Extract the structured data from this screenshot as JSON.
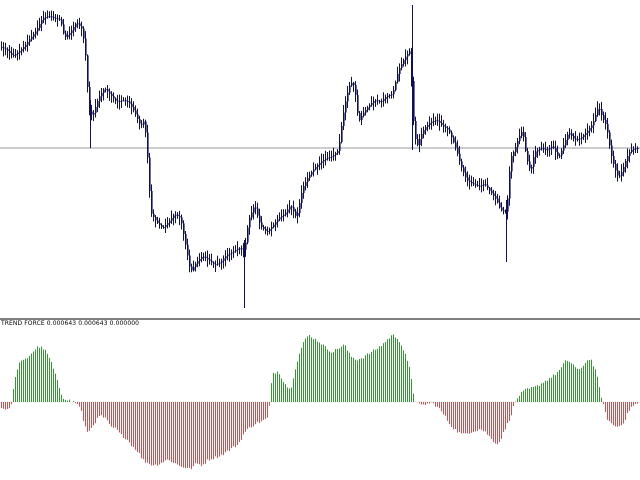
{
  "indicator": {
    "label": "TREND FORCE 0.000643 0.000643 0.000000",
    "positive_color": "#2e9a2e",
    "negative_color": "#e04848"
  },
  "price_chart": {
    "candle_color": "#101050",
    "level_line_color": "#9a9a9a"
  },
  "chart_data": [
    {
      "type": "candlestick",
      "title": "",
      "series": [
        {
          "name": "",
          "close_path": [
            [
              0,
              47
            ],
            [
              6,
              50
            ],
            [
              12,
              56
            ],
            [
              18,
              52
            ],
            [
              24,
              46
            ],
            [
              30,
              38
            ],
            [
              36,
              30
            ],
            [
              42,
              18
            ],
            [
              48,
              16
            ],
            [
              54,
              18
            ],
            [
              60,
              20
            ],
            [
              64,
              38
            ],
            [
              70,
              32
            ],
            [
              76,
              22
            ],
            [
              82,
              30
            ],
            [
              86,
              64
            ],
            [
              88,
              110
            ],
            [
              92,
              116
            ],
            [
              98,
              98
            ],
            [
              104,
              88
            ],
            [
              110,
              95
            ],
            [
              116,
              102
            ],
            [
              122,
              100
            ],
            [
              128,
              102
            ],
            [
              134,
              112
            ],
            [
              140,
              126
            ],
            [
              144,
              120
            ],
            [
              148,
              170
            ],
            [
              150,
              212
            ],
            [
              156,
              222
            ],
            [
              162,
              228
            ],
            [
              168,
              222
            ],
            [
              174,
              214
            ],
            [
              180,
              218
            ],
            [
              186,
              250
            ],
            [
              190,
              272
            ],
            [
              196,
              262
            ],
            [
              202,
              256
            ],
            [
              208,
              260
            ],
            [
              214,
              265
            ],
            [
              220,
              262
            ],
            [
              226,
              255
            ],
            [
              232,
              252
            ],
            [
              238,
              248
            ],
            [
              244,
              250
            ],
            [
              248,
              220
            ],
            [
              254,
              205
            ],
            [
              260,
              226
            ],
            [
              266,
              232
            ],
            [
              272,
              226
            ],
            [
              278,
              218
            ],
            [
              284,
              214
            ],
            [
              290,
              205
            ],
            [
              296,
              218
            ],
            [
              302,
              188
            ],
            [
              308,
              176
            ],
            [
              314,
              168
            ],
            [
              320,
              162
            ],
            [
              326,
              158
            ],
            [
              332,
              156
            ],
            [
              338,
              150
            ],
            [
              342,
              118
            ],
            [
              346,
              96
            ],
            [
              350,
              82
            ],
            [
              354,
              86
            ],
            [
              358,
              122
            ],
            [
              362,
              114
            ],
            [
              368,
              106
            ],
            [
              374,
              100
            ],
            [
              380,
              102
            ],
            [
              386,
              96
            ],
            [
              392,
              94
            ],
            [
              398,
              70
            ],
            [
              404,
              58
            ],
            [
              410,
              50
            ],
            [
              412,
              112
            ],
            [
              416,
              148
            ],
            [
              420,
              136
            ],
            [
              424,
              128
            ],
            [
              430,
              122
            ],
            [
              436,
              120
            ],
            [
              442,
              126
            ],
            [
              448,
              130
            ],
            [
              452,
              140
            ],
            [
              456,
              150
            ],
            [
              460,
              165
            ],
            [
              466,
              180
            ],
            [
              472,
              184
            ],
            [
              478,
              186
            ],
            [
              484,
              184
            ],
            [
              490,
              192
            ],
            [
              496,
              200
            ],
            [
              500,
              210
            ],
            [
              506,
              212
            ],
            [
              510,
              158
            ],
            [
              514,
              150
            ],
            [
              518,
              138
            ],
            [
              522,
              130
            ],
            [
              526,
              158
            ],
            [
              530,
              172
            ],
            [
              534,
              152
            ],
            [
              540,
              148
            ],
            [
              546,
              150
            ],
            [
              552,
              146
            ],
            [
              558,
              158
            ],
            [
              562,
              148
            ],
            [
              568,
              132
            ],
            [
              574,
              140
            ],
            [
              580,
              138
            ],
            [
              586,
              132
            ],
            [
              592,
              124
            ],
            [
              598,
              106
            ],
            [
              602,
              118
            ],
            [
              606,
              126
            ],
            [
              610,
              152
            ],
            [
              614,
              168
            ],
            [
              618,
              178
            ],
            [
              622,
              170
            ],
            [
              626,
              158
            ],
            [
              630,
              150
            ],
            [
              636,
              148
            ]
          ]
        }
      ],
      "reference_line": 148,
      "ylim": [
        0,
        318
      ],
      "grid": false,
      "legend": "none"
    },
    {
      "type": "bar",
      "title": "",
      "series": [
        {
          "name": "",
          "bar_path": [
            [
              0,
              -6
            ],
            [
              10,
              -8
            ],
            [
              14,
              20
            ],
            [
              18,
              40
            ],
            [
              26,
              45
            ],
            [
              32,
              52
            ],
            [
              38,
              58
            ],
            [
              44,
              55
            ],
            [
              50,
              44
            ],
            [
              56,
              25
            ],
            [
              62,
              5
            ],
            [
              68,
              2
            ],
            [
              74,
              0
            ],
            [
              80,
              -5
            ],
            [
              84,
              -25
            ],
            [
              88,
              -32
            ],
            [
              94,
              -22
            ],
            [
              100,
              -14
            ],
            [
              106,
              -18
            ],
            [
              110,
              -26
            ],
            [
              116,
              -28
            ],
            [
              120,
              -34
            ],
            [
              126,
              -38
            ],
            [
              132,
              -46
            ],
            [
              138,
              -52
            ],
            [
              142,
              -60
            ],
            [
              148,
              -64
            ],
            [
              154,
              -66
            ],
            [
              160,
              -64
            ],
            [
              166,
              -60
            ],
            [
              172,
              -62
            ],
            [
              178,
              -66
            ],
            [
              184,
              -68
            ],
            [
              190,
              -70
            ],
            [
              196,
              -64
            ],
            [
              202,
              -66
            ],
            [
              208,
              -60
            ],
            [
              214,
              -58
            ],
            [
              220,
              -56
            ],
            [
              226,
              -52
            ],
            [
              232,
              -48
            ],
            [
              238,
              -44
            ],
            [
              244,
              -32
            ],
            [
              250,
              -26
            ],
            [
              256,
              -22
            ],
            [
              262,
              -20
            ],
            [
              268,
              -16
            ],
            [
              272,
              30
            ],
            [
              278,
              32
            ],
            [
              284,
              20
            ],
            [
              290,
              12
            ],
            [
              296,
              40
            ],
            [
              302,
              60
            ],
            [
              308,
              70
            ],
            [
              314,
              66
            ],
            [
              320,
              62
            ],
            [
              326,
              56
            ],
            [
              332,
              52
            ],
            [
              338,
              56
            ],
            [
              344,
              60
            ],
            [
              350,
              48
            ],
            [
              356,
              44
            ],
            [
              362,
              46
            ],
            [
              368,
              50
            ],
            [
              374,
              54
            ],
            [
              380,
              58
            ],
            [
              386,
              64
            ],
            [
              392,
              70
            ],
            [
              398,
              66
            ],
            [
              404,
              52
            ],
            [
              410,
              32
            ],
            [
              414,
              2
            ],
            [
              420,
              -4
            ],
            [
              426,
              -2
            ],
            [
              432,
              -1
            ],
            [
              438,
              -6
            ],
            [
              444,
              -14
            ],
            [
              450,
              -24
            ],
            [
              456,
              -30
            ],
            [
              462,
              -34
            ],
            [
              468,
              -32
            ],
            [
              474,
              -30
            ],
            [
              480,
              -28
            ],
            [
              486,
              -32
            ],
            [
              492,
              -40
            ],
            [
              498,
              -44
            ],
            [
              504,
              -30
            ],
            [
              510,
              -16
            ],
            [
              514,
              -2
            ],
            [
              518,
              6
            ],
            [
              524,
              12
            ],
            [
              530,
              14
            ],
            [
              536,
              16
            ],
            [
              542,
              20
            ],
            [
              548,
              24
            ],
            [
              554,
              28
            ],
            [
              560,
              34
            ],
            [
              566,
              44
            ],
            [
              572,
              40
            ],
            [
              578,
              32
            ],
            [
              584,
              40
            ],
            [
              590,
              46
            ],
            [
              596,
              30
            ],
            [
              600,
              10
            ],
            [
              606,
              -16
            ],
            [
              612,
              -24
            ],
            [
              618,
              -26
            ],
            [
              624,
              -20
            ],
            [
              630,
              -6
            ],
            [
              636,
              -2
            ]
          ]
        }
      ],
      "ylim": [
        -75,
        75
      ],
      "grid": false,
      "legend": "none"
    }
  ]
}
